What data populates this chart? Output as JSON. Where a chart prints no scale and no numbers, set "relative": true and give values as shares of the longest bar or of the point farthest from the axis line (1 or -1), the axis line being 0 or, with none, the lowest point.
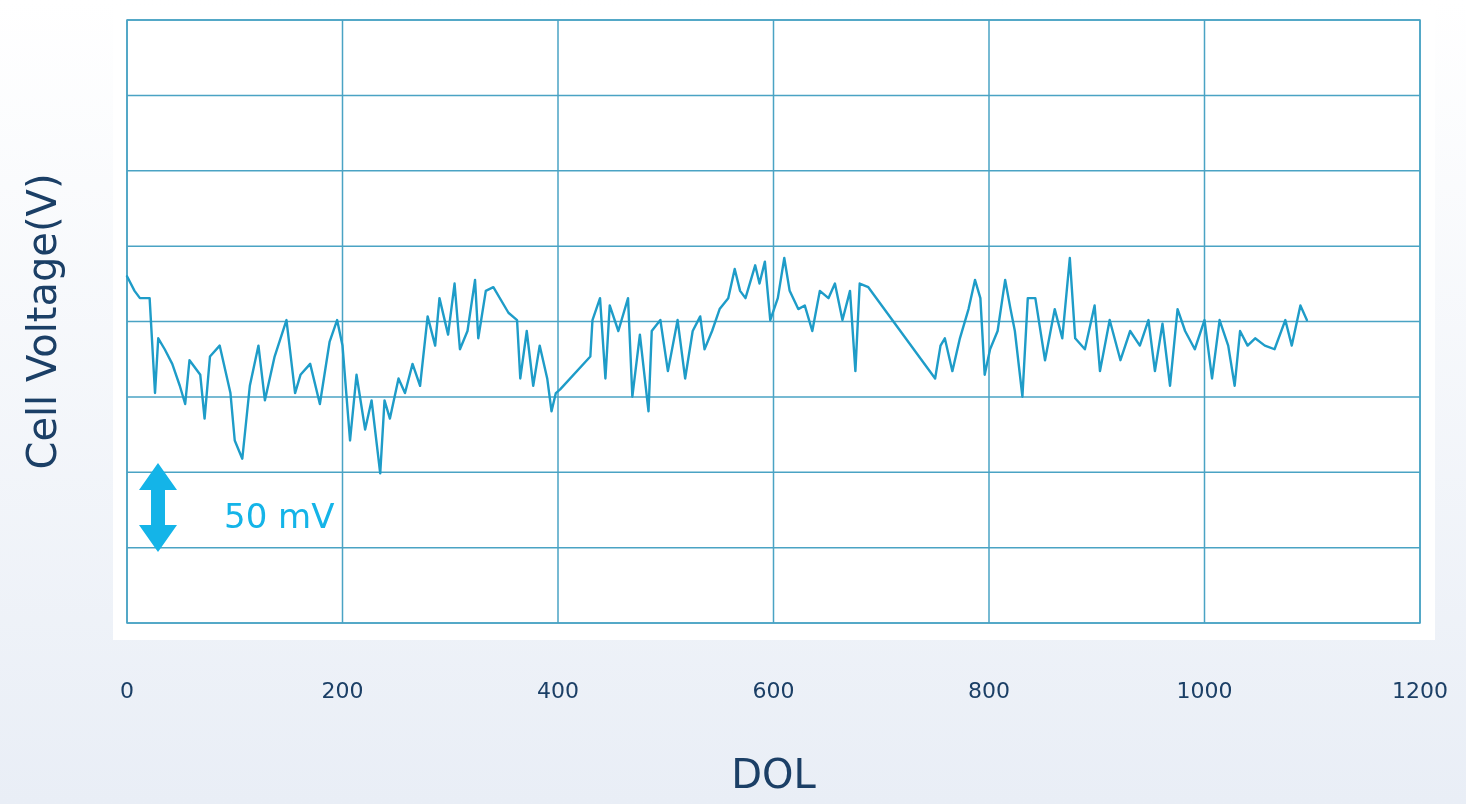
{
  "chart_data": {
    "type": "line",
    "xlabel": "DOL",
    "ylabel": "Cell Voltage(V)",
    "relative": true,
    "grid": true,
    "xlim": [
      0,
      1200
    ],
    "xticks": [
      0,
      200,
      400,
      600,
      800,
      1000,
      1200
    ],
    "annotations": [
      "50 mV"
    ],
    "series": [
      {
        "color": "#1e9cc8",
        "x": [
          0,
          7,
          12,
          21,
          26,
          29,
          35,
          42,
          49,
          54,
          58,
          68,
          72,
          77,
          86,
          96,
          100,
          107,
          114,
          122,
          128,
          137,
          148,
          156,
          161,
          170,
          179,
          188,
          195,
          200,
          207,
          213,
          221,
          227,
          235,
          239,
          244,
          252,
          258,
          265,
          272,
          279,
          286,
          290,
          298,
          304,
          309,
          316,
          323,
          326,
          333,
          340,
          354,
          362,
          365,
          371,
          377,
          383,
          390,
          394,
          398,
          402,
          430,
          432,
          439,
          444,
          448,
          456,
          465,
          469,
          476,
          484,
          487,
          495,
          502,
          511,
          518,
          525,
          532,
          536,
          543,
          550,
          558,
          564,
          569,
          574,
          583,
          587,
          592,
          597,
          604,
          610,
          615,
          623,
          629,
          636,
          643,
          651,
          657,
          664,
          671,
          676,
          680,
          688,
          750,
          755,
          759,
          766,
          773,
          781,
          787,
          792,
          796,
          801,
          808,
          815,
          820,
          824,
          831,
          836,
          843,
          852,
          861,
          868,
          875,
          880,
          889,
          898,
          903,
          912,
          922,
          931,
          940,
          948,
          954,
          961,
          968,
          975,
          982,
          991,
          1000,
          1007,
          1014,
          1022,
          1028,
          1033,
          1040,
          1047,
          1056,
          1065,
          1075,
          1081,
          1089,
          1095
        ],
        "values": [
          0.95,
          0.91,
          0.89,
          0.89,
          0.63,
          0.78,
          0.75,
          0.71,
          0.65,
          0.6,
          0.72,
          0.68,
          0.56,
          0.73,
          0.76,
          0.63,
          0.5,
          0.45,
          0.65,
          0.76,
          0.61,
          0.73,
          0.83,
          0.63,
          0.68,
          0.71,
          0.6,
          0.77,
          0.83,
          0.76,
          0.5,
          0.68,
          0.53,
          0.61,
          0.41,
          0.61,
          0.56,
          0.67,
          0.63,
          0.71,
          0.65,
          0.84,
          0.76,
          0.89,
          0.79,
          0.93,
          0.75,
          0.8,
          0.94,
          0.78,
          0.91,
          0.92,
          0.85,
          0.83,
          0.67,
          0.8,
          0.65,
          0.76,
          0.67,
          0.58,
          0.63,
          0.64,
          0.73,
          0.83,
          0.89,
          0.67,
          0.87,
          0.8,
          0.89,
          0.62,
          0.79,
          0.58,
          0.8,
          0.83,
          0.69,
          0.83,
          0.67,
          0.8,
          0.84,
          0.75,
          0.8,
          0.86,
          0.89,
          0.97,
          0.91,
          0.89,
          0.98,
          0.93,
          0.99,
          0.83,
          0.89,
          1,
          0.91,
          0.86,
          0.87,
          0.8,
          0.91,
          0.89,
          0.93,
          0.83,
          0.91,
          0.69,
          0.93,
          0.92,
          0.67,
          0.76,
          0.78,
          0.69,
          0.78,
          0.86,
          0.94,
          0.89,
          0.68,
          0.75,
          0.8,
          0.94,
          0.86,
          0.8,
          0.62,
          0.89,
          0.89,
          0.72,
          0.86,
          0.78,
          1,
          0.78,
          0.75,
          0.87,
          0.69,
          0.83,
          0.72,
          0.8,
          0.76,
          0.83,
          0.69,
          0.82,
          0.65,
          0.86,
          0.8,
          0.75,
          0.83,
          0.67,
          0.83,
          0.76,
          0.65,
          0.8,
          0.76,
          0.78,
          0.76,
          0.75,
          0.83,
          0.76,
          0.87,
          0.83
        ]
      }
    ]
  }
}
